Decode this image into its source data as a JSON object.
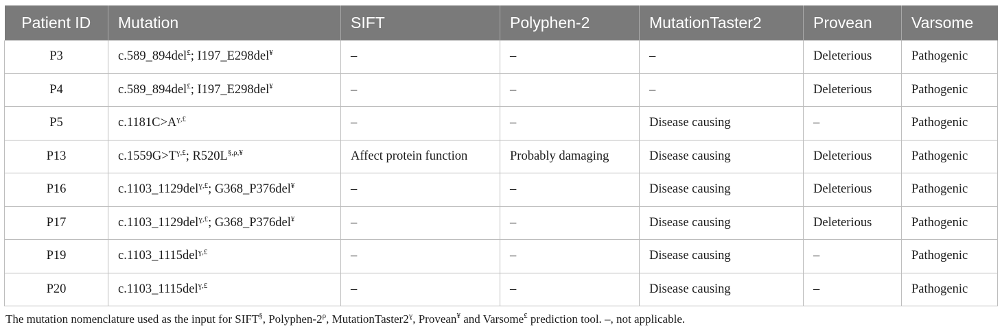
{
  "table": {
    "headers": [
      "Patient ID",
      "Mutation",
      "SIFT",
      "Polyphen-2",
      "MutationTaster2",
      "Provean",
      "Varsome"
    ],
    "rows": [
      {
        "patient_id": "P3",
        "mutation": [
          {
            "t": "c.589_894del"
          },
          {
            "s": "£"
          },
          {
            "t": "; I197_E298del"
          },
          {
            "s": "¥"
          }
        ],
        "sift": "–",
        "polyphen": "–",
        "mutationtaster": "–",
        "provean": "Deleterious",
        "varsome": "Pathogenic"
      },
      {
        "patient_id": "P4",
        "mutation": [
          {
            "t": "c.589_894del"
          },
          {
            "s": "£"
          },
          {
            "t": "; I197_E298del"
          },
          {
            "s": "¥"
          }
        ],
        "sift": "–",
        "polyphen": "–",
        "mutationtaster": "–",
        "provean": "Deleterious",
        "varsome": "Pathogenic"
      },
      {
        "patient_id": "P5",
        "mutation": [
          {
            "t": "c.1181C>A"
          },
          {
            "s": "ɣ,£"
          }
        ],
        "sift": "–",
        "polyphen": "–",
        "mutationtaster": "Disease causing",
        "provean": "–",
        "varsome": "Pathogenic"
      },
      {
        "patient_id": "P13",
        "mutation": [
          {
            "t": "c.1559G>T"
          },
          {
            "s": "ɣ,£"
          },
          {
            "t": "; R520L"
          },
          {
            "s": "§,ρ,¥"
          }
        ],
        "sift": "Affect protein function",
        "polyphen": "Probably damaging",
        "mutationtaster": "Disease causing",
        "provean": "Deleterious",
        "varsome": "Pathogenic"
      },
      {
        "patient_id": "P16",
        "mutation": [
          {
            "t": "c.1103_1129del"
          },
          {
            "s": "ɣ,£"
          },
          {
            "t": "; G368_P376del"
          },
          {
            "s": "¥"
          }
        ],
        "sift": "–",
        "polyphen": "–",
        "mutationtaster": "Disease causing",
        "provean": "Deleterious",
        "varsome": "Pathogenic"
      },
      {
        "patient_id": "P17",
        "mutation": [
          {
            "t": "c.1103_1129del"
          },
          {
            "s": "ɣ,£"
          },
          {
            "t": "; G368_P376del"
          },
          {
            "s": "¥"
          }
        ],
        "sift": "–",
        "polyphen": "–",
        "mutationtaster": "Disease causing",
        "provean": "Deleterious",
        "varsome": "Pathogenic"
      },
      {
        "patient_id": "P19",
        "mutation": [
          {
            "t": "c.1103_1115del"
          },
          {
            "s": "ɣ,£"
          }
        ],
        "sift": "–",
        "polyphen": "–",
        "mutationtaster": "Disease causing",
        "provean": "–",
        "varsome": "Pathogenic"
      },
      {
        "patient_id": "P20",
        "mutation": [
          {
            "t": "c.1103_1115del"
          },
          {
            "s": "ɣ,£"
          }
        ],
        "sift": "–",
        "polyphen": "–",
        "mutationtaster": "Disease causing",
        "provean": "–",
        "varsome": "Pathogenic"
      }
    ]
  },
  "footnote": [
    {
      "t": "The mutation nomenclature used as the input for SIFT"
    },
    {
      "s": "§"
    },
    {
      "t": ", Polyphen-2"
    },
    {
      "s": "ρ"
    },
    {
      "t": ", MutationTaster2"
    },
    {
      "s": "ɣ"
    },
    {
      "t": ", Provean"
    },
    {
      "s": "¥"
    },
    {
      "t": " and Varsome"
    },
    {
      "s": "£"
    },
    {
      "t": " prediction tool. –, not applicable."
    }
  ]
}
